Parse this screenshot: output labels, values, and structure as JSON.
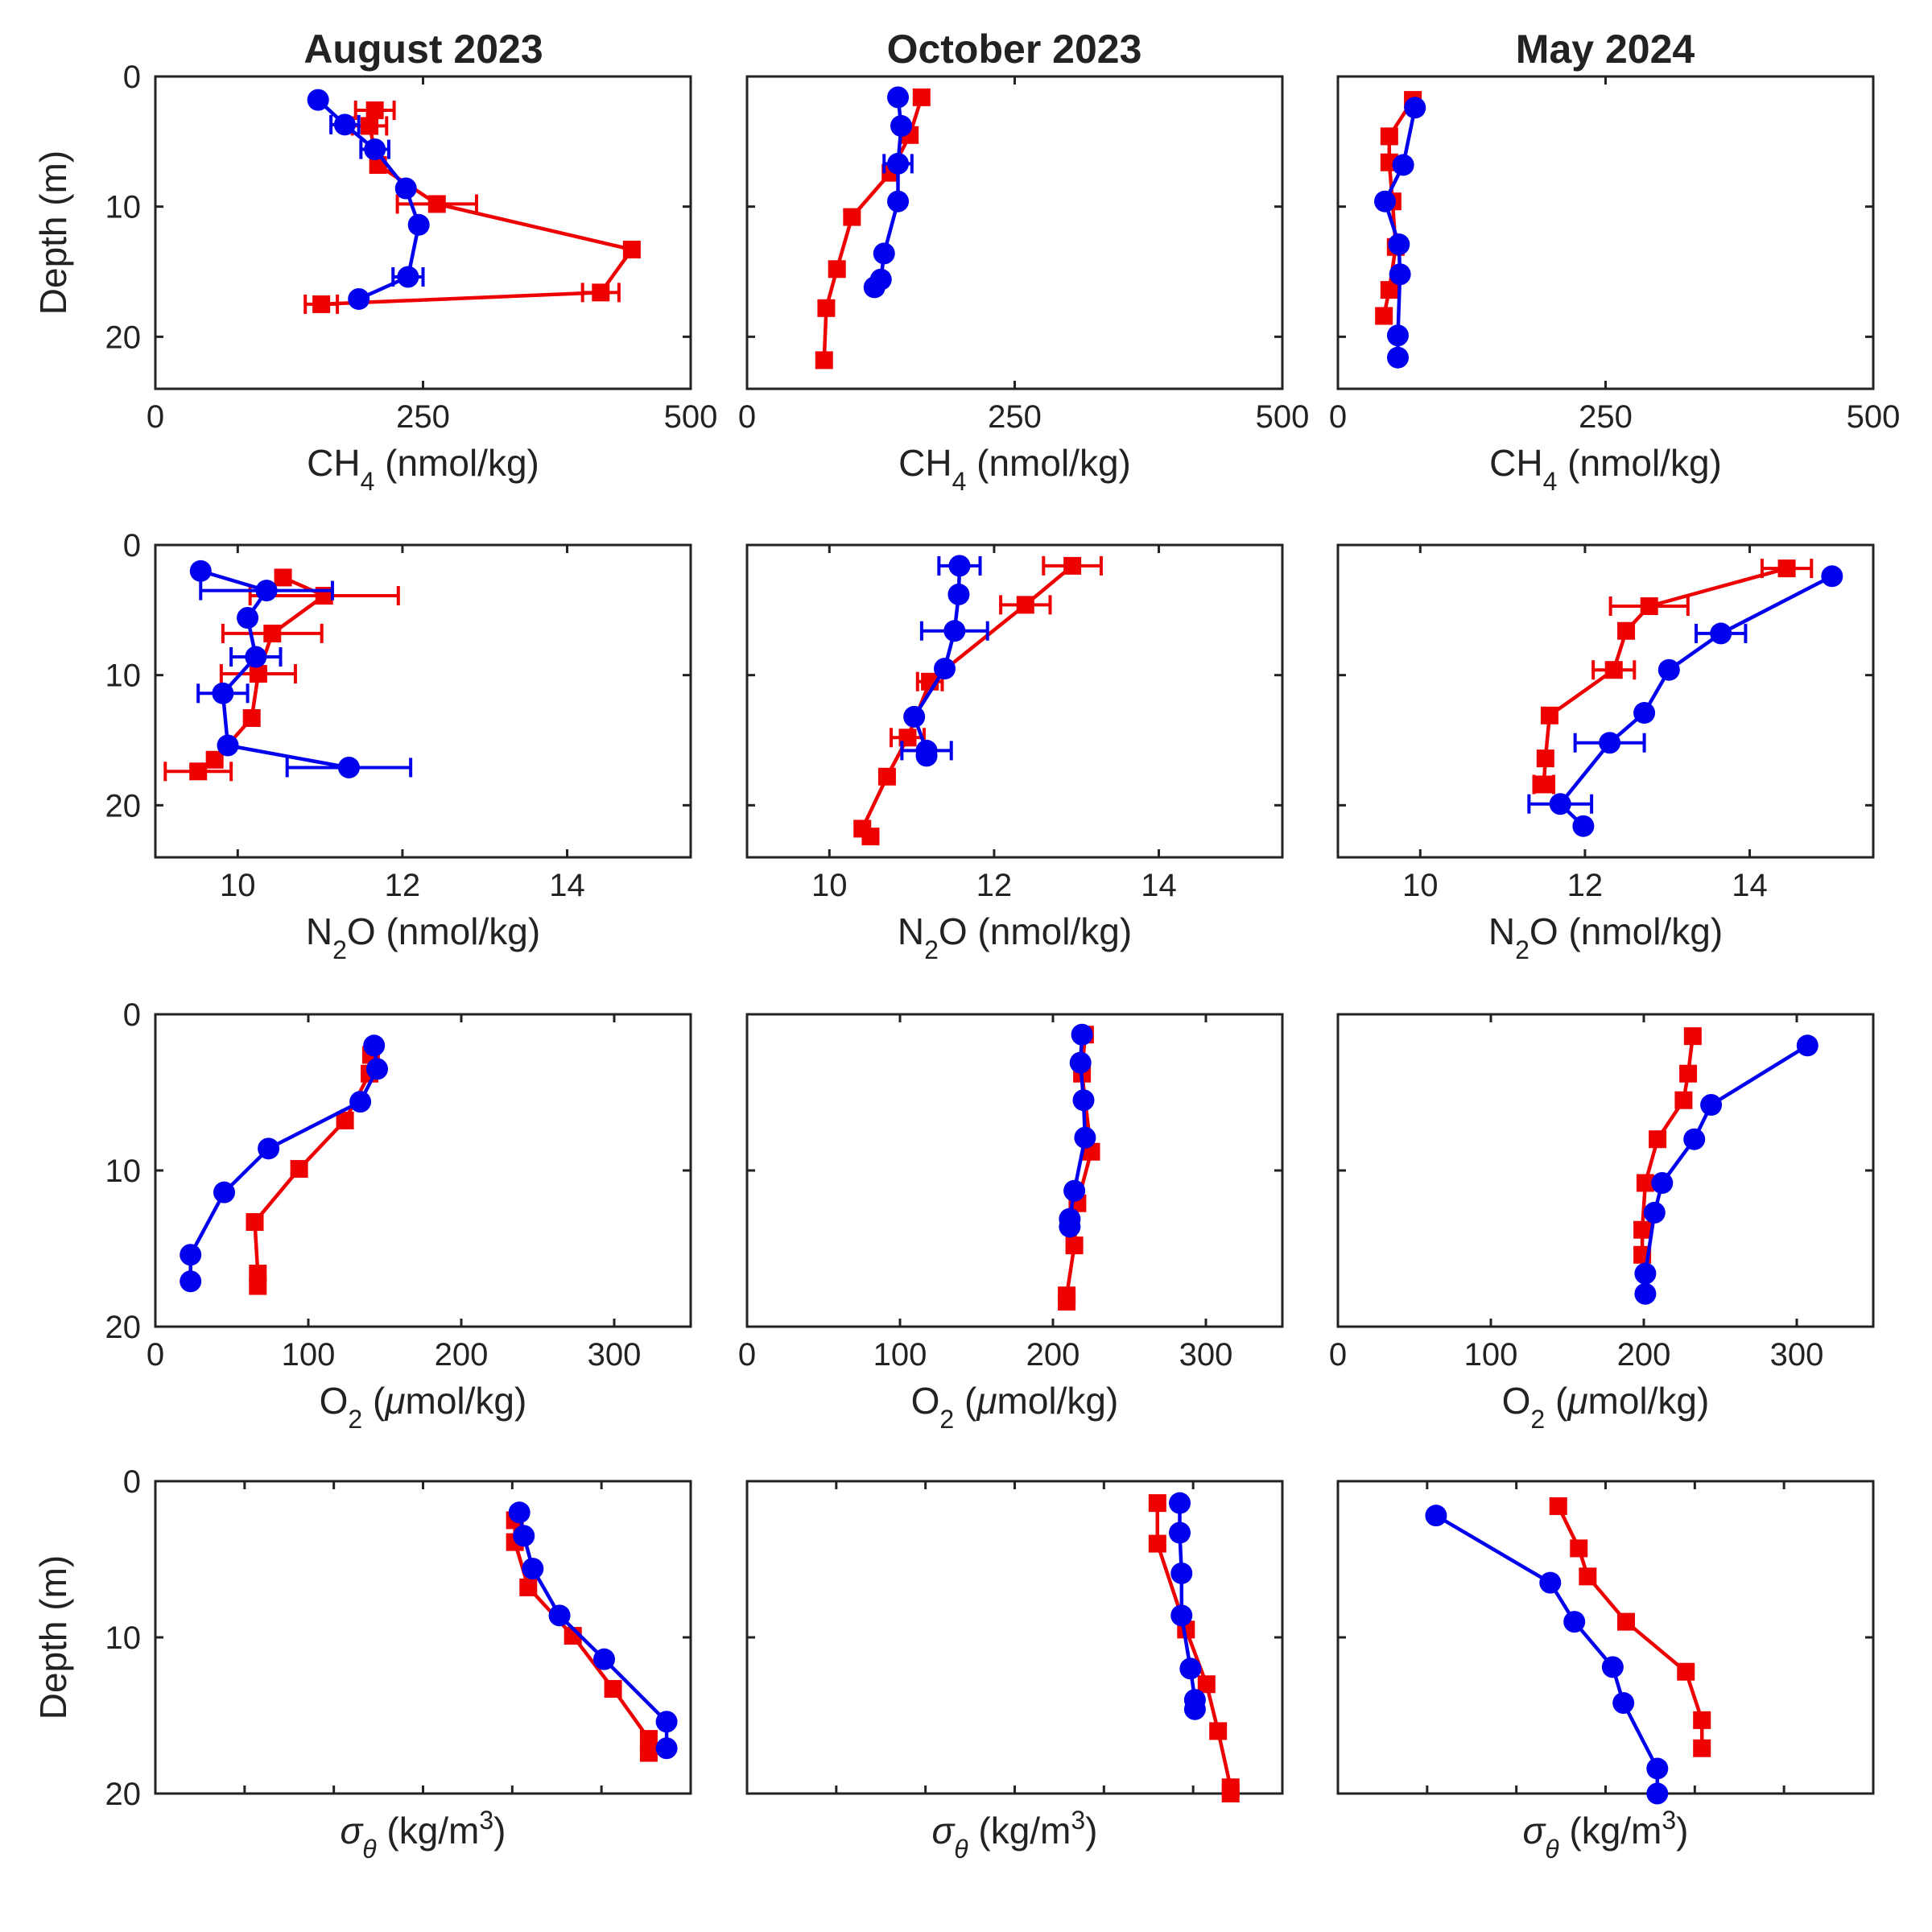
{
  "chart_data": {
    "type": "line",
    "column_titles": [
      "August 2023",
      "October 2023",
      "May 2024"
    ],
    "colors": {
      "blue": "#0000ee",
      "red": "#ee0000"
    },
    "markers": {
      "blue": "circle",
      "red": "square"
    },
    "grid": false,
    "legend": "none",
    "depth_axis": {
      "label": "Depth (m)",
      "inverted": true
    },
    "rows": [
      {
        "variable": "CH4",
        "xlabel": {
          "base": "CH",
          "sub": "4",
          "unit": " (nmol/kg)"
        },
        "xlim": [
          0,
          500
        ],
        "xticks": [
          0,
          250,
          500
        ],
        "xtick_labels": [
          "0",
          "250",
          "500"
        ],
        "ylim": [
          0,
          24
        ],
        "yticks": [
          0,
          10,
          20
        ],
        "ytick_labels": [
          "0",
          "10",
          "20"
        ],
        "panels": [
          {
            "blue": {
              "x": [
                152,
                177,
                205,
                234,
                246,
                236,
                190
              ],
              "y": [
                1.8,
                3.7,
                5.6,
                8.6,
                11.4,
                15.4,
                17.1
              ],
              "err": [
                0,
                13,
                13,
                0,
                0,
                14,
                0
              ]
            },
            "red": {
              "x": [
                205,
                200,
                208,
                263,
                445,
                416,
                155
              ],
              "y": [
                2.6,
                3.8,
                6.8,
                9.8,
                13.3,
                16.6,
                17.5
              ],
              "err": [
                18,
                16,
                0,
                37,
                0,
                17,
                15
              ]
            }
          },
          {
            "blue": {
              "x": [
                141,
                144,
                141,
                141,
                128,
                125,
                119
              ],
              "y": [
                1.6,
                3.8,
                6.7,
                9.6,
                13.6,
                15.6,
                16.2
              ],
              "err": [
                0,
                0,
                13,
                0,
                0,
                0,
                0
              ]
            },
            "red": {
              "x": [
                163,
                152,
                134,
                98,
                84,
                74,
                72
              ],
              "y": [
                1.6,
                4.5,
                7.4,
                10.8,
                14.8,
                17.8,
                21.8
              ],
              "err": [
                0,
                0,
                0,
                0,
                0,
                0,
                0
              ]
            }
          },
          {
            "blue": {
              "x": [
                72,
                61,
                44,
                57,
                58,
                56,
                56
              ],
              "y": [
                2.4,
                6.8,
                9.6,
                12.9,
                15.2,
                19.9,
                21.6
              ],
              "err": [
                0,
                0,
                0,
                0,
                0,
                0,
                0
              ]
            },
            "red": {
              "x": [
                70,
                48,
                48,
                51,
                54,
                48,
                43
              ],
              "y": [
                1.8,
                4.6,
                6.6,
                9.6,
                13.1,
                16.4,
                18.4
              ],
              "err": [
                0,
                0,
                0,
                0,
                0,
                0,
                0
              ]
            }
          }
        ]
      },
      {
        "variable": "N2O",
        "xlabel": {
          "base": "N",
          "sub": "2",
          "unit": "O (nmol/kg)"
        },
        "xlim": [
          9,
          15.5
        ],
        "xticks": [
          10,
          12,
          14
        ],
        "xtick_labels": [
          "10",
          "12",
          "14"
        ],
        "ylim": [
          0,
          24
        ],
        "yticks": [
          0,
          10,
          20
        ],
        "ytick_labels": [
          "0",
          "10",
          "20"
        ],
        "panels": [
          {
            "blue": {
              "x": [
                9.55,
                10.35,
                10.12,
                10.22,
                9.82,
                9.88,
                11.35
              ],
              "y": [
                2.0,
                3.5,
                5.6,
                8.6,
                11.4,
                15.4,
                17.1
              ],
              "err": [
                0,
                0.8,
                0,
                0.3,
                0.3,
                0,
                0.75
              ]
            },
            "red": {
              "x": [
                10.55,
                11.05,
                10.42,
                10.25,
                10.17,
                9.72,
                9.52
              ],
              "y": [
                2.5,
                3.9,
                6.8,
                9.9,
                13.3,
                16.5,
                17.4
              ],
              "err": [
                0,
                0.9,
                0.6,
                0.45,
                0,
                0,
                0.4
              ]
            }
          },
          {
            "blue": {
              "x": [
                11.58,
                11.57,
                11.52,
                11.4,
                11.03,
                11.18,
                11.18
              ],
              "y": [
                1.6,
                3.8,
                6.6,
                9.5,
                13.2,
                15.8,
                16.2
              ],
              "err": [
                0.25,
                0,
                0.4,
                0,
                0,
                0.3,
                0
              ]
            },
            "red": {
              "x": [
                12.95,
                12.38,
                11.22,
                10.95,
                10.7,
                10.4,
                10.5
              ],
              "y": [
                1.6,
                4.6,
                10.5,
                14.8,
                17.8,
                21.8,
                22.4
              ],
              "err": [
                0.35,
                0.3,
                0.15,
                0.2,
                0,
                0,
                0
              ]
            }
          },
          {
            "blue": {
              "x": [
                15.0,
                13.65,
                13.02,
                12.72,
                12.3,
                11.7,
                11.98
              ],
              "y": [
                2.4,
                6.8,
                9.6,
                12.9,
                15.2,
                19.9,
                21.6
              ],
              "err": [
                0,
                0.3,
                0,
                0,
                0.42,
                0.38,
                0
              ]
            },
            "red": {
              "x": [
                14.45,
                12.78,
                12.5,
                12.35,
                11.57,
                11.52,
                11.5
              ],
              "y": [
                1.8,
                4.7,
                6.6,
                9.6,
                13.1,
                16.4,
                18.4
              ],
              "err": [
                0.3,
                0.47,
                0,
                0.25,
                0,
                0,
                0.12
              ]
            }
          }
        ]
      },
      {
        "variable": "O2",
        "xlabel": {
          "base": "O",
          "sub": "2",
          "unit": " (μmol/kg)"
        },
        "xlim": [
          0,
          350
        ],
        "xticks": [
          0,
          100,
          200,
          300
        ],
        "xtick_labels": [
          "0",
          "100",
          "200",
          "300"
        ],
        "ylim": [
          0,
          20
        ],
        "yticks": [
          0,
          10,
          20
        ],
        "ytick_labels": [
          "0",
          "10",
          "20"
        ],
        "panels": [
          {
            "blue": {
              "x": [
                143,
                145,
                134,
                74,
                45,
                23,
                23
              ],
              "y": [
                2.0,
                3.5,
                5.6,
                8.6,
                11.4,
                15.4,
                17.1
              ],
              "err": [
                0,
                0,
                0,
                0,
                0,
                0,
                0
              ]
            },
            "red": {
              "x": [
                141,
                140,
                124,
                94,
                65,
                67,
                67
              ],
              "y": [
                2.6,
                3.8,
                6.8,
                9.9,
                13.3,
                16.6,
                17.4
              ],
              "err": [
                0,
                0,
                0,
                0,
                0,
                0,
                0
              ]
            }
          },
          {
            "blue": {
              "x": [
                219,
                218,
                220,
                221,
                214,
                211,
                211
              ],
              "y": [
                1.3,
                3.1,
                5.5,
                7.9,
                11.3,
                13.1,
                13.6
              ],
              "err": [
                0,
                0,
                0,
                0,
                0,
                0,
                0
              ]
            },
            "red": {
              "x": [
                221,
                219,
                225,
                216,
                214,
                209,
                209
              ],
              "y": [
                1.3,
                3.8,
                8.8,
                12.1,
                14.8,
                18.0,
                18.4
              ],
              "err": [
                0,
                0,
                0,
                0,
                0,
                0,
                0
              ]
            }
          },
          {
            "blue": {
              "x": [
                307,
                244,
                233,
                212,
                207,
                201,
                201
              ],
              "y": [
                2.0,
                5.8,
                8.0,
                10.8,
                12.7,
                16.6,
                17.9
              ],
              "err": [
                0,
                0,
                0,
                0,
                0,
                0,
                0
              ]
            },
            "red": {
              "x": [
                232,
                229,
                226,
                209,
                201,
                199,
                199
              ],
              "y": [
                1.4,
                3.8,
                5.5,
                8.0,
                10.8,
                13.8,
                15.4
              ],
              "err": [
                0,
                0,
                0,
                0,
                0,
                0,
                0
              ]
            }
          }
        ]
      },
      {
        "variable": "sigma_theta",
        "xlabel": {
          "base": "σ",
          "sub": "θ",
          "unit": " (kg/m",
          "sup": "3",
          "close": ")"
        },
        "xlim": [
          0,
          6
        ],
        "xticks": [
          1,
          2,
          3,
          4,
          5
        ],
        "xtick_labels": [],
        "ylim": [
          0,
          20
        ],
        "yticks": [
          0,
          10,
          20
        ],
        "ytick_labels": [
          "0",
          "10",
          "20"
        ],
        "panels": [
          {
            "blue": {
              "x": [
                4.08,
                4.13,
                4.23,
                4.53,
                5.03,
                5.73,
                5.73
              ],
              "y": [
                2.0,
                3.5,
                5.6,
                8.6,
                11.4,
                15.4,
                17.1
              ],
              "err": [
                0,
                0,
                0,
                0,
                0,
                0,
                0
              ]
            },
            "red": {
              "x": [
                4.03,
                4.03,
                4.18,
                4.68,
                5.13,
                5.53,
                5.53
              ],
              "y": [
                2.5,
                3.9,
                6.8,
                9.9,
                13.3,
                16.5,
                17.4
              ],
              "err": [
                0,
                0,
                0,
                0,
                0,
                0,
                0
              ]
            }
          },
          {
            "blue": {
              "x": [
                4.85,
                4.85,
                4.87,
                4.87,
                4.97,
                5.02,
                5.02
              ],
              "y": [
                1.4,
                3.3,
                5.9,
                8.6,
                12.0,
                14.0,
                14.6
              ],
              "err": [
                0,
                0,
                0,
                0,
                0,
                0,
                0
              ]
            },
            "red": {
              "x": [
                4.6,
                4.6,
                4.92,
                5.15,
                5.28,
                5.42,
                5.42
              ],
              "y": [
                1.4,
                4.0,
                9.5,
                13.0,
                16.0,
                19.6,
                20.0
              ],
              "err": [
                0,
                0,
                0,
                0,
                0,
                0,
                0
              ]
            }
          },
          {
            "blue": {
              "x": [
                1.1,
                2.38,
                2.65,
                3.08,
                3.2,
                3.58,
                3.58
              ],
              "y": [
                2.2,
                6.5,
                9.0,
                11.9,
                14.2,
                18.4,
                20.0
              ],
              "err": [
                0,
                0,
                0,
                0,
                0,
                0,
                0
              ]
            },
            "red": {
              "x": [
                2.47,
                2.7,
                2.8,
                3.23,
                3.9,
                4.08,
                4.08
              ],
              "y": [
                1.6,
                4.3,
                6.1,
                9.0,
                12.2,
                15.3,
                17.1
              ],
              "err": [
                0,
                0,
                0,
                0,
                0,
                0,
                0
              ]
            }
          }
        ]
      }
    ]
  }
}
